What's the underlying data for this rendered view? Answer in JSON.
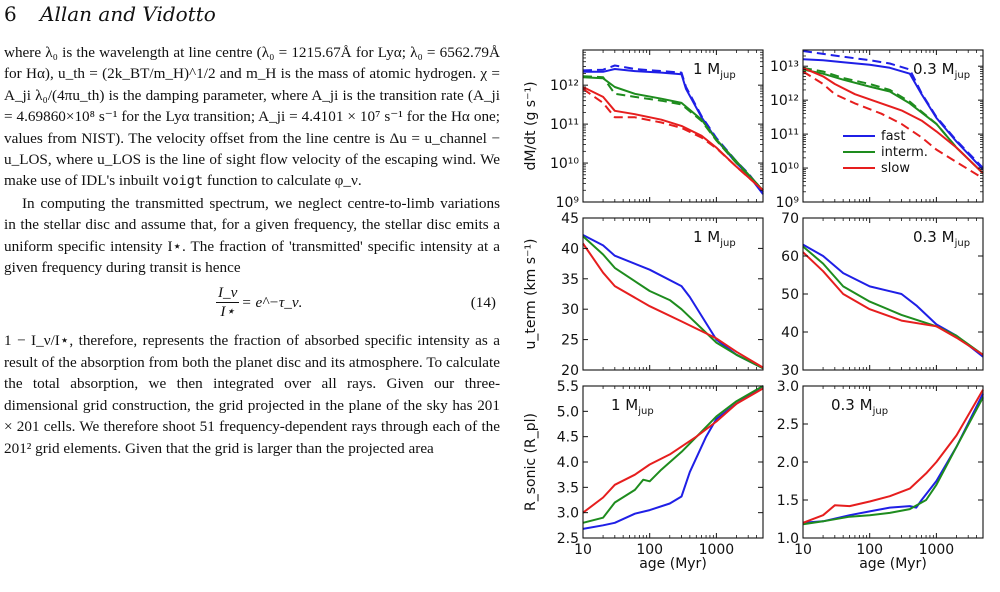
{
  "header": {
    "page_number": "6",
    "running_title": "Allan and Vidotto"
  },
  "paragraphs": [
    "where λ₀ is the wavelength at line centre (λ₀ = 1215.67Å for Lyα; λ₀ = 6562.79Å for Hα), u_th = (2k_BT/m_H)^1/2 and m_H is the mass of atomic hydrogen. χ = A_ji λ₀/(4πu_th) is the damping parameter, where A_ji is the transition rate (A_ji = 4.69860×10⁸ s⁻¹ for the Lyα transition; A_ji = 4.4101 × 10⁷ s⁻¹ for the Hα one; values from NIST). The velocity offset from the line centre is Δu = u_channel − u_LOS, where u_LOS is the line of sight flow velocity of the escaping wind. We make use of IDL's inbuilt",
    "function to calculate φ_ν.",
    "In computing the transmitted spectrum, we neglect centre-to-limb variations in the stellar disc and assume that, for a given frequency, the stellar disc emits a uniform specific intensity I⋆. The fraction of 'transmitted' specific intensity at a given frequency during transit is hence",
    "1 − I_ν/I⋆, therefore, represents the fraction of absorbed specific intensity as a result of the absorption from both the planet disc and its atmosphere. To calculate the total absorption, we then integrated over all rays. Given our three-dimensional grid construction, the grid projected in the plane of the sky has 201 × 201 cells. We therefore shoot 51 frequency-dependent rays through each of the 201² grid elements. Given that the grid is larger than the projected area"
  ],
  "code_word": "voigt",
  "equation": {
    "numerator": "I_ν",
    "denominator": "I⋆",
    "rhs": "= e^−τ_ν.",
    "number": "(14)"
  },
  "chart_data": [
    {
      "type": "line",
      "panel": "top-left",
      "annotation": "1 M_jup",
      "ylabel": "dM/dt (g s⁻¹)",
      "yscale": "log",
      "ylim": [
        1000000000.0,
        8000000000000.0
      ],
      "xscale": "log",
      "xlim": [
        10,
        5000
      ],
      "series": [
        {
          "name": "fast",
          "color": "#1f1fe6",
          "x": [
            10,
            20,
            30,
            60,
            150,
            300,
            350,
            600,
            1000,
            2000,
            3000,
            5000
          ],
          "y": [
            2200000000000.0,
            2200000000000.0,
            2600000000000.0,
            2300000000000.0,
            2100000000000.0,
            1900000000000.0,
            800000000000.0,
            150000000000.0,
            40000000000.0,
            10000000000.0,
            5000000000.0,
            1600000000.0
          ]
        },
        {
          "name": "",
          "color": "#1f1fe6",
          "dashed": true,
          "x": [
            10,
            20,
            30,
            60,
            150,
            300,
            350,
            600,
            1000,
            2000,
            3000,
            5000
          ],
          "y": [
            2400000000000.0,
            2500000000000.0,
            3200000000000.0,
            2600000000000.0,
            2300000000000.0,
            2100000000000.0,
            900000000000.0,
            160000000000.0,
            44000000000.0,
            11000000000.0,
            5500000000.0,
            1800000000.0
          ]
        },
        {
          "name": "interm.",
          "color": "#1e8c1e",
          "x": [
            10,
            20,
            30,
            60,
            150,
            300,
            600,
            1000,
            2000,
            5000
          ],
          "y": [
            1600000000000.0,
            1500000000000.0,
            900000000000.0,
            600000000000.0,
            450000000000.0,
            350000000000.0,
            130000000000.0,
            40000000000.0,
            11000000000.0,
            2000000000.0
          ]
        },
        {
          "name": "",
          "color": "#1e8c1e",
          "dashed": true,
          "x": [
            10,
            20,
            30,
            60,
            150,
            300,
            600,
            1000,
            2000,
            5000
          ],
          "y": [
            1700000000000.0,
            1600000000000.0,
            600000000000.0,
            500000000000.0,
            400000000000.0,
            320000000000.0,
            120000000000.0,
            38000000000.0,
            10000000000.0,
            2000000000.0
          ]
        },
        {
          "name": "slow",
          "color": "#e61e1e",
          "x": [
            10,
            20,
            30,
            60,
            150,
            300,
            600,
            1000,
            2000,
            5000
          ],
          "y": [
            900000000000.0,
            500000000000.0,
            220000000000.0,
            180000000000.0,
            130000000000.0,
            90000000000.0,
            50000000000.0,
            25000000000.0,
            8000000000.0,
            2000000000.0
          ]
        },
        {
          "name": "",
          "color": "#e61e1e",
          "dashed": true,
          "x": [
            10,
            20,
            30,
            60,
            150,
            300,
            600,
            1000,
            2000,
            5000
          ],
          "y": [
            800000000000.0,
            350000000000.0,
            150000000000.0,
            150000000000.0,
            110000000000.0,
            80000000000.0,
            45000000000.0,
            24000000000.0,
            8000000000.0,
            2000000000.0
          ]
        }
      ]
    },
    {
      "type": "line",
      "panel": "top-right",
      "annotation": "0.3 M_jup",
      "yscale": "log",
      "ylim": [
        1000000000.0,
        30000000000000.0
      ],
      "xscale": "log",
      "xlim": [
        10,
        5000
      ],
      "legend": "center-right",
      "series": [
        {
          "name": "fast",
          "color": "#1f1fe6",
          "x": [
            10,
            20,
            40,
            100,
            200,
            400,
            600,
            1000,
            2000,
            5000
          ],
          "y": [
            16000000000000.0,
            15000000000000.0,
            13000000000000.0,
            11000000000000.0,
            9000000000000.0,
            6000000000000.0,
            1500000000000.0,
            300000000000.0,
            60000000000.0,
            9000000000.0
          ]
        },
        {
          "name": "",
          "color": "#1f1fe6",
          "dashed": true,
          "x": [
            10,
            20,
            40,
            100,
            200,
            400,
            600,
            1000,
            2000,
            5000
          ],
          "y": [
            28000000000000.0,
            23000000000000.0,
            19000000000000.0,
            15000000000000.0,
            12000000000000.0,
            8000000000000.0,
            1600000000000.0,
            320000000000.0,
            65000000000.0,
            10000000000.0
          ]
        },
        {
          "name": "interm.",
          "color": "#1e8c1e",
          "x": [
            10,
            20,
            40,
            100,
            200,
            400,
            1000,
            2000,
            5000
          ],
          "y": [
            8000000000000.0,
            6000000000000.0,
            4000000000000.0,
            2500000000000.0,
            1800000000000.0,
            800000000000.0,
            200000000000.0,
            40000000000.0,
            7000000000.0
          ]
        },
        {
          "name": "",
          "color": "#1e8c1e",
          "dashed": true,
          "x": [
            10,
            20,
            40,
            100,
            200,
            400,
            1000,
            2000,
            5000
          ],
          "y": [
            9000000000000.0,
            7000000000000.0,
            4500000000000.0,
            3000000000000.0,
            2000000000000.0,
            900000000000.0,
            200000000000.0,
            40000000000.0,
            7000000000.0
          ]
        },
        {
          "name": "slow",
          "color": "#e61e1e",
          "x": [
            10,
            20,
            30,
            60,
            150,
            300,
            600,
            1000,
            2000,
            5000
          ],
          "y": [
            9000000000000.0,
            5000000000000.0,
            3000000000000.0,
            1500000000000.0,
            800000000000.0,
            500000000000.0,
            250000000000.0,
            120000000000.0,
            40000000000.0,
            7000000000.0
          ]
        },
        {
          "name": "",
          "color": "#e61e1e",
          "dashed": true,
          "x": [
            10,
            20,
            30,
            60,
            150,
            300,
            600,
            1000,
            2000,
            5000
          ],
          "y": [
            7000000000000.0,
            3000000000000.0,
            1500000000000.0,
            800000000000.0,
            400000000000.0,
            200000000000.0,
            80000000000.0,
            35000000000.0,
            15000000000.0,
            5000000000.0
          ]
        }
      ]
    },
    {
      "type": "line",
      "panel": "mid-left",
      "annotation": "1 M_jup",
      "ylabel": "u_term (km s⁻¹)",
      "ylim": [
        20,
        45
      ],
      "xscale": "log",
      "xlim": [
        10,
        5000
      ],
      "series": [
        {
          "name": "fast",
          "color": "#1f1fe6",
          "x": [
            10,
            20,
            30,
            100,
            300,
            400,
            1000,
            2000,
            5000
          ],
          "y": [
            42.2,
            40.5,
            38.8,
            36.5,
            33.8,
            32,
            25,
            22.5,
            20.3
          ]
        },
        {
          "name": "interm.",
          "color": "#1e8c1e",
          "x": [
            10,
            20,
            30,
            100,
            200,
            300,
            1000,
            2000,
            5000
          ],
          "y": [
            42,
            39,
            36.8,
            33,
            31.5,
            30,
            24.5,
            22.5,
            20.3
          ]
        },
        {
          "name": "slow",
          "color": "#e61e1e",
          "x": [
            10,
            20,
            30,
            100,
            300,
            1000,
            2000,
            5000
          ],
          "y": [
            40.8,
            36,
            33.8,
            30.5,
            28,
            25.2,
            23,
            20.4
          ]
        }
      ]
    },
    {
      "type": "line",
      "panel": "mid-right",
      "annotation": "0.3 M_jup",
      "ylim": [
        30,
        70
      ],
      "xscale": "log",
      "xlim": [
        10,
        5000
      ],
      "series": [
        {
          "name": "fast",
          "color": "#1f1fe6",
          "x": [
            10,
            20,
            40,
            100,
            300,
            500,
            1000,
            2000,
            5000
          ],
          "y": [
            63,
            60,
            55.5,
            52,
            50,
            47,
            42,
            39,
            33.5
          ]
        },
        {
          "name": "interm.",
          "color": "#1e8c1e",
          "x": [
            10,
            20,
            40,
            100,
            300,
            1000,
            2000,
            5000
          ],
          "y": [
            62.5,
            58,
            52,
            48,
            44.5,
            41.5,
            39,
            34
          ]
        },
        {
          "name": "slow",
          "color": "#e61e1e",
          "x": [
            10,
            20,
            40,
            100,
            300,
            1000,
            2000,
            5000
          ],
          "y": [
            61,
            56,
            50,
            46,
            43,
            41.5,
            38.5,
            34
          ]
        }
      ]
    },
    {
      "type": "line",
      "panel": "bottom-left",
      "annotation": "1 M_jup",
      "ylabel": "R_sonic (R_pl)",
      "ylim": [
        2.5,
        5.5
      ],
      "xlabel": "age (Myr)",
      "xscale": "log",
      "xlim": [
        10,
        5000
      ],
      "series": [
        {
          "name": "fast",
          "color": "#1f1fe6",
          "x": [
            10,
            20,
            30,
            60,
            100,
            200,
            300,
            400,
            700,
            1000,
            2000,
            5000
          ],
          "y": [
            2.68,
            2.75,
            2.8,
            2.98,
            3.05,
            3.18,
            3.32,
            3.8,
            4.5,
            4.85,
            5.15,
            5.5
          ]
        },
        {
          "name": "interm.",
          "color": "#1e8c1e",
          "x": [
            10,
            20,
            30,
            60,
            80,
            100,
            150,
            300,
            600,
            1000,
            2000,
            5000
          ],
          "y": [
            2.8,
            2.9,
            3.2,
            3.45,
            3.65,
            3.62,
            3.85,
            4.2,
            4.6,
            4.9,
            5.2,
            5.5
          ]
        },
        {
          "name": "slow",
          "color": "#e61e1e",
          "x": [
            10,
            20,
            30,
            60,
            100,
            200,
            500,
            1000,
            2000,
            5000
          ],
          "y": [
            3.0,
            3.3,
            3.55,
            3.75,
            3.95,
            4.15,
            4.5,
            4.8,
            5.15,
            5.45
          ]
        }
      ]
    },
    {
      "type": "line",
      "panel": "bottom-right",
      "annotation": "0.3 M_jup",
      "ylim": [
        1.0,
        3.0
      ],
      "xlabel": "age (Myr)",
      "xscale": "log",
      "xlim": [
        10,
        5000
      ],
      "series": [
        {
          "name": "fast",
          "color": "#1f1fe6",
          "x": [
            10,
            20,
            50,
            100,
            200,
            400,
            500,
            600,
            1000,
            2000,
            5000
          ],
          "y": [
            1.2,
            1.22,
            1.3,
            1.35,
            1.4,
            1.42,
            1.4,
            1.5,
            1.75,
            2.2,
            2.9
          ]
        },
        {
          "name": "interm.",
          "color": "#1e8c1e",
          "x": [
            10,
            20,
            50,
            100,
            200,
            400,
            700,
            1000,
            2000,
            5000
          ],
          "y": [
            1.18,
            1.22,
            1.28,
            1.3,
            1.33,
            1.38,
            1.5,
            1.7,
            2.2,
            2.85
          ]
        },
        {
          "name": "slow",
          "color": "#e61e1e",
          "x": [
            10,
            20,
            30,
            50,
            100,
            200,
            400,
            700,
            1000,
            2000,
            5000
          ],
          "y": [
            1.2,
            1.3,
            1.43,
            1.42,
            1.48,
            1.55,
            1.65,
            1.85,
            2.0,
            2.35,
            2.95
          ]
        }
      ]
    }
  ],
  "tick_labels": {
    "log_top_left": [
      "10¹²",
      "10¹¹",
      "10¹⁰",
      "10⁹"
    ],
    "log_top_right": [
      "10¹³",
      "10¹²",
      "10¹¹",
      "10¹⁰",
      "10⁹"
    ],
    "mid_left": [
      "45",
      "40",
      "35",
      "30",
      "25",
      "20"
    ],
    "mid_right": [
      "70",
      "60",
      "50",
      "40",
      "30"
    ],
    "bottom_left": [
      "5.5",
      "5.0",
      "4.5",
      "4.0",
      "3.5",
      "3.0",
      "2.5"
    ],
    "bottom_right": [
      "3.0",
      "2.5",
      "2.0",
      "1.5",
      "1.0"
    ],
    "x": [
      "10",
      "100",
      "1000"
    ]
  }
}
